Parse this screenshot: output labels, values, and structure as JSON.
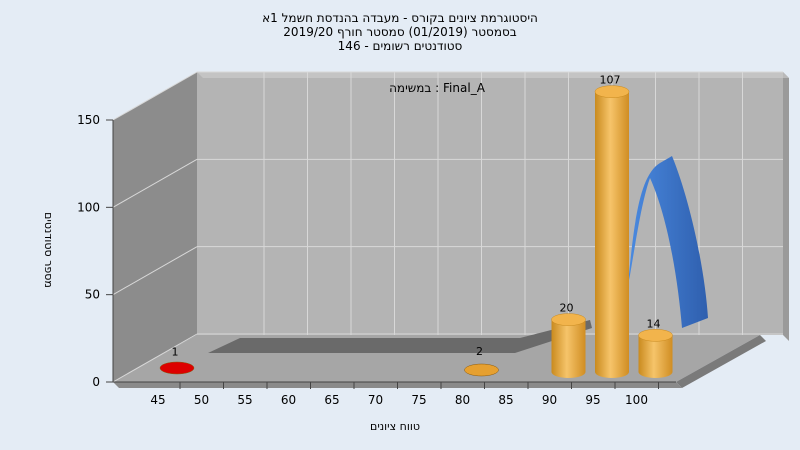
{
  "chart_data": {
    "type": "bar",
    "title_lines": [
      "היסטוגרמת ציונים בקורס - מעבדה בהנדסת חשמל 1א",
      "בסמסטר  (01/2019)  סמסטר חורף 2019/20",
      "סטודנטים רשומים - 146"
    ],
    "inner_title": "במשימה : Final_A",
    "xlabel": "טווח ציונים",
    "ylabel": "מספר סטודנטים",
    "x_ticks": [
      "45",
      "50",
      "55",
      "60",
      "65",
      "70",
      "75",
      "80",
      "85",
      "90",
      "95",
      "100"
    ],
    "y_ticks": [
      "0",
      "50",
      "100",
      "150"
    ],
    "ylim": [
      0,
      150
    ],
    "bars": [
      {
        "x": "45",
        "value": 1,
        "label": "1",
        "color": "#dd0000"
      },
      {
        "x": "80",
        "value": 2,
        "label": "2",
        "color": "#e6a030"
      },
      {
        "x": "90",
        "value": 20,
        "label": "20",
        "color": "#e6a030"
      },
      {
        "x": "95",
        "value": 107,
        "label": "107",
        "color": "#e6a030"
      },
      {
        "x": "100",
        "value": 14,
        "label": "14",
        "color": "#e6a030"
      }
    ],
    "grid": true,
    "colors": {
      "background": "#e4ecf5",
      "plot_back": "#b4b4b4",
      "plot_left": "#8c8c8c",
      "plot_floor": "#a6a6a6",
      "bar": "#e6a030",
      "bar_low": "#dd0000",
      "curve": "#3a78c8"
    }
  }
}
